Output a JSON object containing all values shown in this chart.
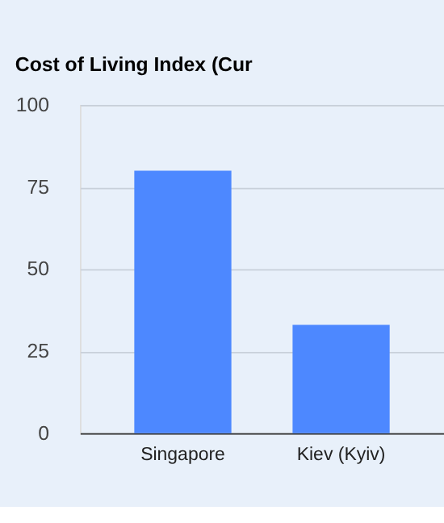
{
  "chart_data": {
    "type": "bar",
    "title": "Cost of Living Index (Cur",
    "categories": [
      "Singapore",
      "Kiev (Kyiv)"
    ],
    "series": [
      {
        "color": "#4d88ff",
        "values": [
          80,
          33
        ]
      }
    ],
    "ylim": [
      0,
      100
    ],
    "yticks": [
      0,
      25,
      50,
      75,
      100
    ],
    "grid": "y",
    "legend": false
  }
}
